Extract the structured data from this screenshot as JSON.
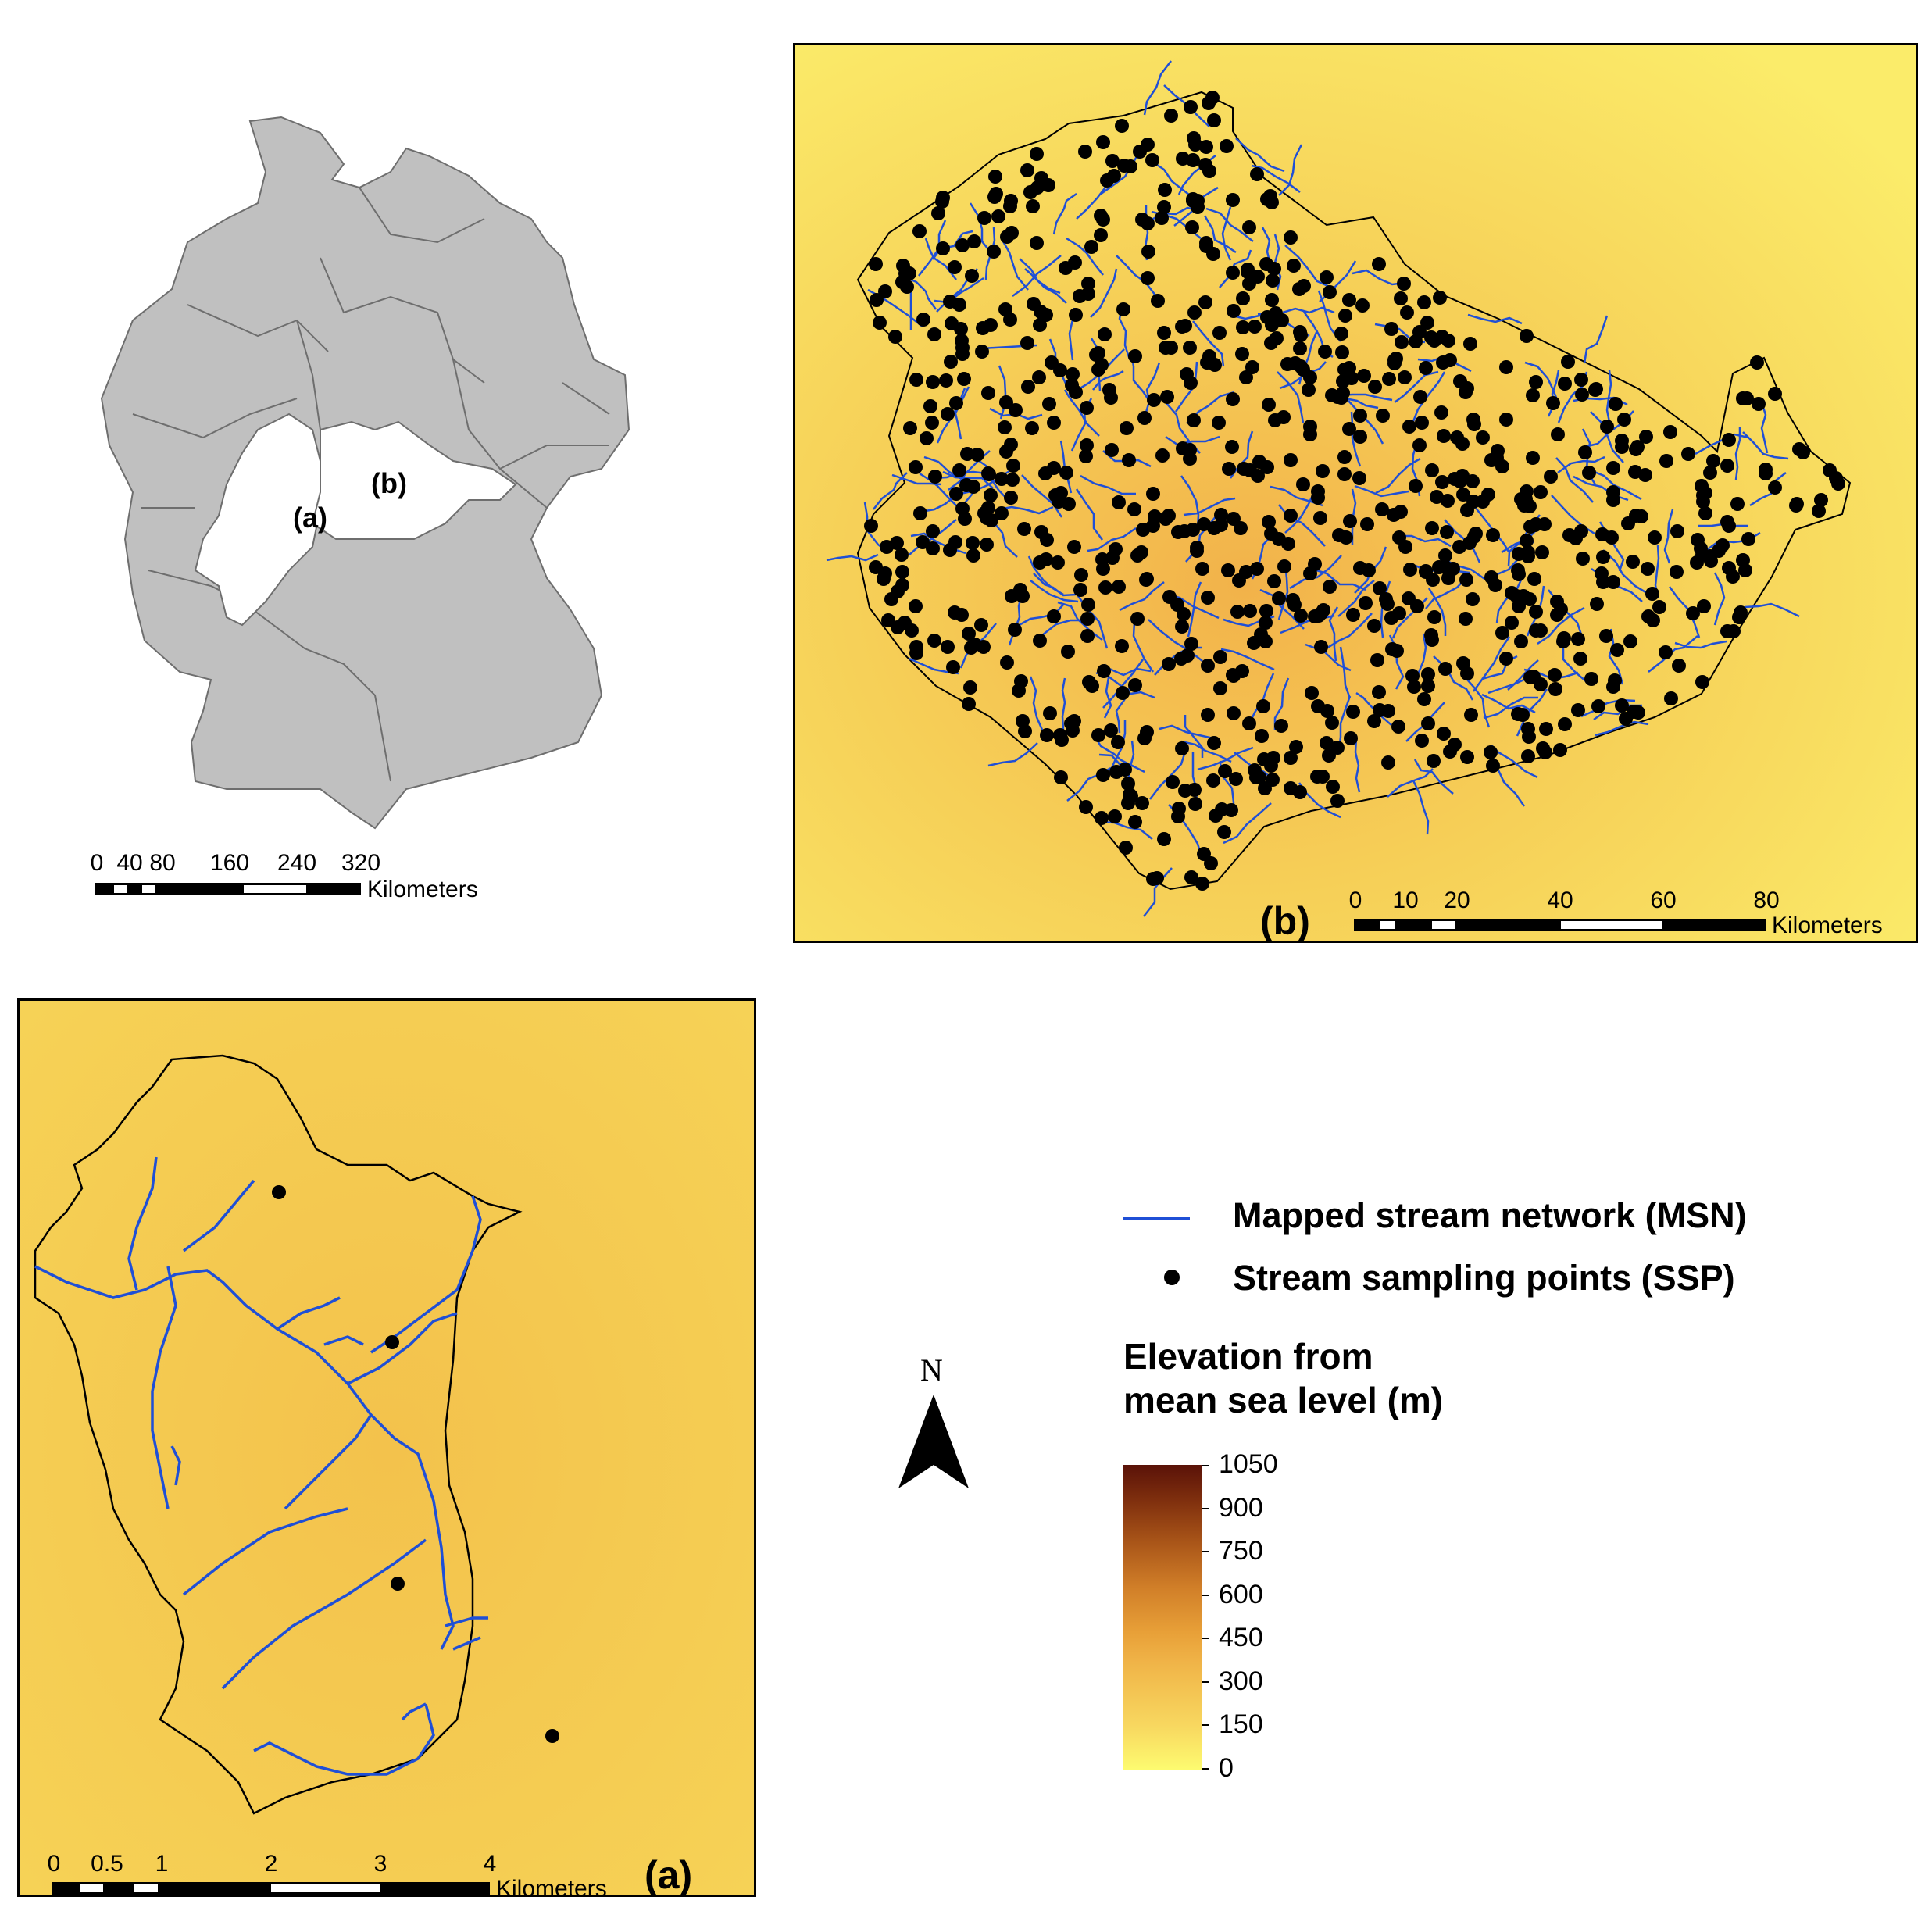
{
  "germany_map": {
    "label_a": "(a)",
    "label_b": "(b)",
    "scalebar": {
      "ticks": [
        "0",
        "40",
        "80",
        "160",
        "240",
        "320"
      ],
      "unit": "Kilometers"
    },
    "colors": {
      "land": "#c0c0c0",
      "highlight": "#ffffff",
      "border": "#6e6e6e"
    }
  },
  "panel_b": {
    "label": "(b)",
    "scalebar": {
      "ticks": [
        "0",
        "10",
        "20",
        "40",
        "60",
        "80"
      ],
      "unit": "Kilometers"
    }
  },
  "panel_a": {
    "label": "(a)",
    "scalebar": {
      "ticks": [
        "0",
        "0.5",
        "1",
        "2",
        "3",
        "4"
      ],
      "unit": "Kilometers"
    }
  },
  "legend": {
    "stream_network": "Mapped stream network (MSN)",
    "sampling_points": "Stream sampling points (SSP)",
    "elevation_title_line1": "Elevation from",
    "elevation_title_line2": "mean sea level (m)",
    "colorbar_ticks": [
      "1050",
      "900",
      "750",
      "600",
      "450",
      "300",
      "150",
      "0"
    ],
    "colorbar_colors": [
      "#fdfb70",
      "#f8d860",
      "#f0b448",
      "#e8a038",
      "#d07e28",
      "#a85418",
      "#80300e",
      "#5a1208"
    ],
    "stream_color": "#1f4fd6",
    "point_color": "#000000"
  },
  "north_arrow": {
    "label": "N"
  }
}
